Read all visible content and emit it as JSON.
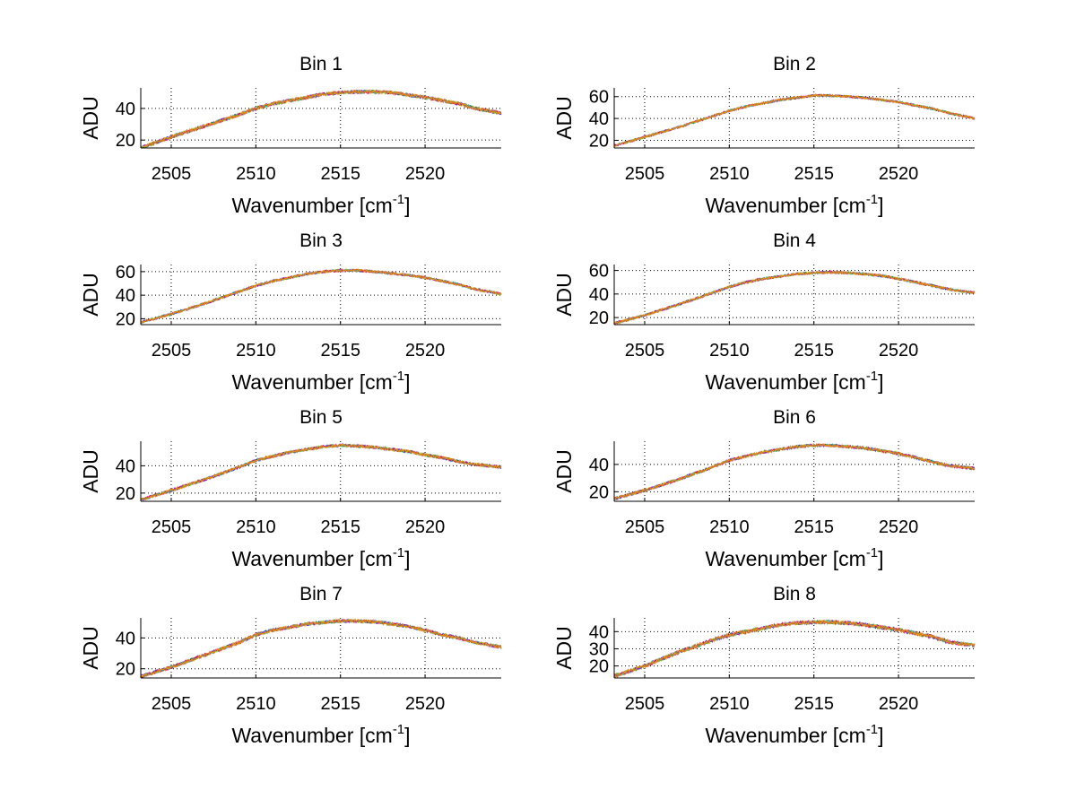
{
  "figure": {
    "background": "#ffffff",
    "line_colors": [
      "#0000ff",
      "#008000",
      "#ff0000",
      "#00bfbf",
      "#bf00bf",
      "#bfbf00",
      "#ff8000"
    ]
  },
  "chart_data": [
    {
      "type": "line",
      "title": "Bin 1",
      "xlabel": "Wavenumber [cm-1]",
      "xlabel_main": "Wavenumber [cm",
      "xlabel_sup": "-1",
      "xlabel_close": "]",
      "ylabel": "ADU",
      "xlim": [
        2503.2,
        2524.5
      ],
      "ylim": [
        15,
        53
      ],
      "xticks": [
        2505,
        2510,
        2515,
        2520
      ],
      "yticks": [
        20,
        40
      ],
      "grid": true,
      "n_series": 7,
      "x": [
        2503.2,
        2505,
        2507,
        2509,
        2510,
        2511,
        2512,
        2513,
        2514,
        2515,
        2516,
        2517,
        2518,
        2519,
        2520,
        2521,
        2522,
        2523,
        2524.5
      ],
      "y": [
        15,
        22,
        29,
        36,
        40,
        43,
        45,
        47,
        49,
        50,
        50.5,
        50.5,
        50,
        48.5,
        47,
        45,
        43,
        40,
        37
      ]
    },
    {
      "type": "line",
      "title": "Bin 2",
      "xlabel": "Wavenumber [cm-1]",
      "xlabel_main": "Wavenumber [cm",
      "xlabel_sup": "-1",
      "xlabel_close": "]",
      "ylabel": "ADU",
      "xlim": [
        2503.2,
        2524.5
      ],
      "ylim": [
        13,
        68
      ],
      "xticks": [
        2505,
        2510,
        2515,
        2520
      ],
      "yticks": [
        20,
        40,
        60
      ],
      "grid": true,
      "n_series": 7,
      "x": [
        2503.2,
        2505,
        2507,
        2509,
        2510,
        2511,
        2512,
        2513,
        2514,
        2515,
        2516,
        2517,
        2518,
        2519,
        2520,
        2521,
        2522,
        2523,
        2524.5
      ],
      "y": [
        15,
        23,
        32,
        42,
        47,
        51,
        54,
        57,
        59,
        61,
        61,
        60,
        59,
        57,
        55,
        52,
        49,
        45,
        40
      ]
    },
    {
      "type": "line",
      "title": "Bin 3",
      "xlabel": "Wavenumber [cm-1]",
      "xlabel_main": "Wavenumber [cm",
      "xlabel_sup": "-1",
      "xlabel_close": "]",
      "ylabel": "ADU",
      "xlim": [
        2503.2,
        2524.5
      ],
      "ylim": [
        15,
        66
      ],
      "xticks": [
        2505,
        2510,
        2515,
        2520
      ],
      "yticks": [
        20,
        40,
        60
      ],
      "grid": true,
      "n_series": 7,
      "x": [
        2503.2,
        2505,
        2507,
        2509,
        2510,
        2511,
        2512,
        2513,
        2514,
        2515,
        2516,
        2517,
        2518,
        2519,
        2520,
        2521,
        2522,
        2523,
        2524.5
      ],
      "y": [
        17,
        24,
        33,
        43,
        48,
        52,
        55,
        58,
        60,
        61,
        61,
        60,
        58.5,
        57,
        55,
        52,
        49,
        45,
        41
      ]
    },
    {
      "type": "line",
      "title": "Bin 4",
      "xlabel": "Wavenumber [cm-1]",
      "xlabel_main": "Wavenumber [cm",
      "xlabel_sup": "-1",
      "xlabel_close": "]",
      "ylabel": "ADU",
      "xlim": [
        2503.2,
        2524.5
      ],
      "ylim": [
        14,
        65
      ],
      "xticks": [
        2505,
        2510,
        2515,
        2520
      ],
      "yticks": [
        20,
        40,
        60
      ],
      "grid": true,
      "n_series": 7,
      "x": [
        2503.2,
        2505,
        2507,
        2509,
        2510,
        2511,
        2512,
        2513,
        2514,
        2515,
        2516,
        2517,
        2518,
        2519,
        2520,
        2521,
        2522,
        2523,
        2524.5
      ],
      "y": [
        15,
        22,
        31,
        41,
        46,
        50,
        53,
        55,
        57,
        58,
        58.5,
        58,
        57,
        55.5,
        53,
        50,
        47,
        44,
        41
      ]
    },
    {
      "type": "line",
      "title": "Bin 5",
      "xlabel": "Wavenumber [cm-1]",
      "xlabel_main": "Wavenumber [cm",
      "xlabel_sup": "-1",
      "xlabel_close": "]",
      "ylabel": "ADU",
      "xlim": [
        2503.2,
        2524.5
      ],
      "ylim": [
        14,
        58
      ],
      "xticks": [
        2505,
        2510,
        2515,
        2520
      ],
      "yticks": [
        20,
        40
      ],
      "grid": true,
      "n_series": 7,
      "x": [
        2503.2,
        2505,
        2507,
        2509,
        2510,
        2511,
        2512,
        2513,
        2514,
        2515,
        2516,
        2517,
        2518,
        2519,
        2520,
        2521,
        2522,
        2523,
        2524.5
      ],
      "y": [
        15,
        22,
        30,
        39,
        44,
        47,
        50,
        52,
        54,
        55,
        54.5,
        53.5,
        52,
        50.5,
        48,
        46,
        43,
        41,
        39
      ]
    },
    {
      "type": "line",
      "title": "Bin 6",
      "xlabel": "Wavenumber [cm-1]",
      "xlabel_main": "Wavenumber [cm",
      "xlabel_sup": "-1",
      "xlabel_close": "]",
      "ylabel": "ADU",
      "xlim": [
        2503.2,
        2524.5
      ],
      "ylim": [
        13,
        57
      ],
      "xticks": [
        2505,
        2510,
        2515,
        2520
      ],
      "yticks": [
        20,
        40
      ],
      "grid": true,
      "n_series": 7,
      "x": [
        2503.2,
        2505,
        2507,
        2509,
        2510,
        2511,
        2512,
        2513,
        2514,
        2515,
        2516,
        2517,
        2518,
        2519,
        2520,
        2521,
        2522,
        2523,
        2524.5
      ],
      "y": [
        15,
        21,
        29,
        38,
        43,
        46,
        49,
        51,
        53,
        54,
        54,
        53,
        52,
        50,
        48,
        45,
        42,
        39,
        37
      ]
    },
    {
      "type": "line",
      "title": "Bin 7",
      "xlabel": "Wavenumber [cm-1]",
      "xlabel_main": "Wavenumber [cm",
      "xlabel_sup": "-1",
      "xlabel_close": "]",
      "ylabel": "ADU",
      "xlim": [
        2503.2,
        2524.5
      ],
      "ylim": [
        14,
        53
      ],
      "xticks": [
        2505,
        2510,
        2515,
        2520
      ],
      "yticks": [
        20,
        40
      ],
      "grid": true,
      "n_series": 7,
      "x": [
        2503.2,
        2505,
        2507,
        2509,
        2510,
        2511,
        2512,
        2513,
        2514,
        2515,
        2516,
        2517,
        2518,
        2519,
        2520,
        2521,
        2522,
        2523,
        2524.5
      ],
      "y": [
        15,
        21,
        29,
        37,
        42,
        45,
        47,
        49,
        50,
        51,
        51,
        50.5,
        49,
        47.5,
        45,
        42,
        40,
        37,
        34
      ]
    },
    {
      "type": "line",
      "title": "Bin 8",
      "xlabel": "Wavenumber [cm-1]",
      "xlabel_main": "Wavenumber [cm",
      "xlabel_sup": "-1",
      "xlabel_close": "]",
      "ylabel": "ADU",
      "xlim": [
        2503.2,
        2524.5
      ],
      "ylim": [
        13,
        48
      ],
      "xticks": [
        2505,
        2510,
        2515,
        2520
      ],
      "yticks": [
        20,
        30,
        40
      ],
      "grid": true,
      "n_series": 7,
      "x": [
        2503.2,
        2505,
        2507,
        2509,
        2510,
        2511,
        2512,
        2513,
        2514,
        2515,
        2516,
        2517,
        2518,
        2519,
        2520,
        2521,
        2522,
        2523,
        2524.5
      ],
      "y": [
        14,
        20,
        28,
        35,
        38,
        40,
        42,
        44,
        45,
        45.5,
        45.5,
        45,
        44,
        42.5,
        41,
        39,
        37,
        34,
        32
      ]
    }
  ]
}
